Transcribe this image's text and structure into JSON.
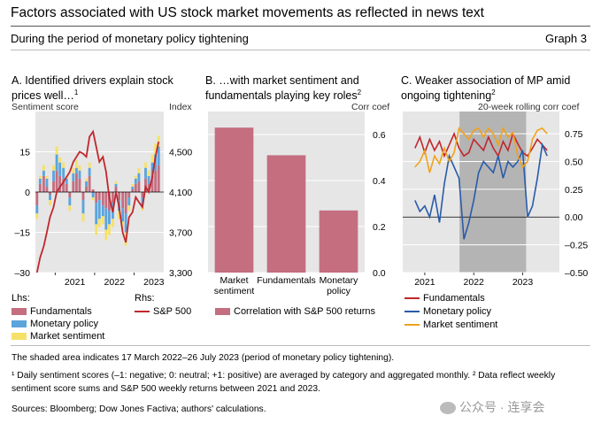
{
  "header": {
    "title": "Factors associated with US stock market movements as reflected in news text",
    "subtitle": "During the period of monetary policy tightening",
    "graph_number": "Graph 3"
  },
  "colors": {
    "fundamentals": "#c46e80",
    "monetary_policy": "#5ba4dc",
    "market_sentiment": "#f5e16a",
    "sp500": "#c0272d",
    "mp_line": "#2a5ba8",
    "sentiment_line": "#f0a21c",
    "corr_bar": "#c46e80",
    "panel_bg": "#e6e6e6",
    "shade": "#b4b4b4"
  },
  "panel_a": {
    "title": "A. Identified drivers explain stock prices well…",
    "title_sup": "1",
    "left_unit": "Sentiment score",
    "right_unit": "Index",
    "legend": {
      "lhs_label": "Lhs:",
      "rhs_label": "Rhs:",
      "fundamentals": "Fundamentals",
      "monetary_policy": "Monetary policy",
      "market_sentiment": "Market sentiment",
      "sp500": "S&P 500"
    }
  },
  "panel_b": {
    "title": "B. …with market sentiment and fundamentals playing key roles",
    "title_sup": "2",
    "right_unit": "Corr coef",
    "legend": {
      "corr": "Correlation with S&P 500 returns"
    }
  },
  "panel_c": {
    "title": "C. Weaker association of MP amid ongoing tightening",
    "title_sup": "2",
    "right_unit": "20-week rolling corr coef",
    "legend": {
      "fundamentals": "Fundamentals",
      "monetary_policy": "Monetary policy",
      "market_sentiment": "Market sentiment"
    }
  },
  "footer": {
    "shade_note": "The shaded area indicates 17 March 2022–26 July 2023 (period of monetary policy tightening).",
    "notes": "¹  Daily sentiment scores (–1: negative; 0: neutral; +1: positive) are averaged by category and aggregated monthly.   ²  Data reflect weekly sentiment score sums and S&P 500 weekly returns between 2021 and 2023.",
    "sources": "Sources: Bloomberg; Dow Jones Factiva; authors' calculations.",
    "watermark": "公众号 · 连享会"
  },
  "chart_data": [
    {
      "type": "bar",
      "panel": "A",
      "title": "A. Identified drivers explain stock prices well…",
      "ylabel_left": "Sentiment score",
      "ylabel_right": "Index",
      "ylim_left": [
        -30,
        30
      ],
      "ylim_right": [
        3300,
        4900
      ],
      "left_ticks": [
        "15",
        "0",
        "–15",
        "–30"
      ],
      "left_tick_values": [
        15,
        0,
        -15,
        -30
      ],
      "right_ticks": [
        "4,500",
        "4,100",
        "3,700",
        "3,300"
      ],
      "right_tick_values": [
        4500,
        4100,
        3700,
        3300
      ],
      "x_ticks": [
        "2021",
        "2022",
        "2023"
      ],
      "x_tick_positions": [
        2021.0,
        2022.0,
        2023.0
      ],
      "x_range": [
        2020.5,
        2023.75
      ],
      "x": [
        2020.54,
        2020.62,
        2020.71,
        2020.79,
        2020.87,
        2020.96,
        2021.04,
        2021.12,
        2021.21,
        2021.29,
        2021.37,
        2021.46,
        2021.54,
        2021.62,
        2021.71,
        2021.79,
        2021.87,
        2021.96,
        2022.04,
        2022.12,
        2022.21,
        2022.29,
        2022.37,
        2022.46,
        2022.54,
        2022.62,
        2022.71,
        2022.79,
        2022.87,
        2022.96,
        2023.04,
        2023.12,
        2023.21,
        2023.29,
        2023.37,
        2023.46,
        2023.54,
        2023.62
      ],
      "series": [
        {
          "name": "Fundamentals",
          "stack": "sentiment",
          "values": [
            -5,
            3,
            6,
            2,
            -1,
            4,
            8,
            6,
            5,
            3,
            -2,
            4,
            7,
            5,
            -3,
            2,
            6,
            1,
            -4,
            -3,
            -5,
            -6,
            -7,
            -4,
            2,
            -3,
            -6,
            -8,
            -2,
            1,
            3,
            4,
            -2,
            5,
            3,
            6,
            8,
            10
          ]
        },
        {
          "name": "Monetary policy",
          "stack": "sentiment",
          "values": [
            -3,
            2,
            2,
            3,
            -2,
            4,
            6,
            5,
            4,
            2,
            -3,
            3,
            2,
            3,
            -5,
            2,
            3,
            -2,
            -8,
            -7,
            -4,
            -8,
            -5,
            -6,
            1,
            -4,
            -5,
            -7,
            -3,
            1,
            2,
            3,
            -3,
            4,
            3,
            5,
            6,
            7
          ]
        },
        {
          "name": "Market sentiment",
          "stack": "sentiment",
          "values": [
            -2,
            1,
            2,
            1,
            -2,
            2,
            3,
            2,
            2,
            1,
            -2,
            2,
            3,
            2,
            -3,
            1,
            2,
            -1,
            -4,
            -3,
            -3,
            -4,
            -4,
            -3,
            1,
            -3,
            -3,
            -5,
            -2,
            1,
            1,
            2,
            -2,
            2,
            2,
            3,
            4,
            4
          ]
        },
        {
          "name": "S&P 500",
          "axis": "right",
          "values": [
            3300,
            3450,
            3560,
            3700,
            3850,
            3950,
            4100,
            4150,
            4200,
            4250,
            4300,
            4400,
            4450,
            4500,
            4480,
            4450,
            4650,
            4700,
            4550,
            4400,
            4450,
            4300,
            4050,
            3900,
            4100,
            3950,
            3700,
            3600,
            3850,
            3900,
            4050,
            4000,
            3950,
            4150,
            4100,
            4250,
            4450,
            4600
          ]
        }
      ]
    },
    {
      "type": "bar",
      "panel": "B",
      "title": "B. …with market sentiment and fundamentals playing key roles",
      "ylabel_right": "Corr coef",
      "categories": [
        "Market sentiment",
        "Fundamentals",
        "Monetary policy"
      ],
      "category_labels": [
        [
          "Market",
          "sentiment"
        ],
        [
          "Fundamentals"
        ],
        [
          "Monetary",
          "policy"
        ]
      ],
      "values": [
        0.63,
        0.51,
        0.27
      ],
      "series_name": "Correlation with S&P 500 returns",
      "ylim": [
        0,
        0.7
      ],
      "ticks": [
        "0.6",
        "0.4",
        "0.2",
        "0.0"
      ],
      "tick_values": [
        0.6,
        0.4,
        0.2,
        0.0
      ]
    },
    {
      "type": "line",
      "panel": "C",
      "title": "C. Weaker association of MP amid ongoing tightening",
      "ylabel_right": "20-week rolling corr coef",
      "ylim": [
        -0.5,
        0.95
      ],
      "ticks": [
        "0.75",
        "0.50",
        "0.25",
        "0.00",
        "–0.25",
        "–0.50"
      ],
      "tick_values": [
        0.75,
        0.5,
        0.25,
        0.0,
        -0.25,
        -0.5
      ],
      "x_ticks": [
        "2021",
        "2022",
        "2023"
      ],
      "x_tick_positions": [
        2021.0,
        2022.0,
        2023.0
      ],
      "x_range": [
        2020.55,
        2023.75
      ],
      "shaded_range": [
        2021.71,
        2023.07
      ],
      "x": [
        2020.8,
        2020.9,
        2021.0,
        2021.1,
        2021.2,
        2021.3,
        2021.4,
        2021.5,
        2021.6,
        2021.7,
        2021.8,
        2021.9,
        2022.0,
        2022.1,
        2022.2,
        2022.3,
        2022.4,
        2022.5,
        2022.6,
        2022.7,
        2022.8,
        2022.9,
        2023.0,
        2023.1,
        2023.2,
        2023.3,
        2023.4,
        2023.5
      ],
      "series": [
        {
          "name": "Fundamentals",
          "values": [
            0.62,
            0.72,
            0.58,
            0.7,
            0.6,
            0.68,
            0.55,
            0.65,
            0.75,
            0.62,
            0.55,
            0.58,
            0.7,
            0.65,
            0.6,
            0.72,
            0.62,
            0.55,
            0.68,
            0.6,
            0.75,
            0.66,
            0.58,
            0.55,
            0.62,
            0.7,
            0.65,
            0.6
          ]
        },
        {
          "name": "Monetary policy",
          "values": [
            0.15,
            0.05,
            0.1,
            0.0,
            0.2,
            -0.05,
            0.3,
            0.55,
            0.45,
            0.35,
            -0.2,
            -0.05,
            0.15,
            0.4,
            0.5,
            0.45,
            0.4,
            0.55,
            0.35,
            0.5,
            0.45,
            0.5,
            0.6,
            0.0,
            0.1,
            0.35,
            0.65,
            0.55
          ]
        },
        {
          "name": "Market sentiment",
          "values": [
            0.45,
            0.5,
            0.6,
            0.4,
            0.55,
            0.48,
            0.62,
            0.5,
            0.58,
            0.8,
            0.75,
            0.7,
            0.78,
            0.8,
            0.72,
            0.8,
            0.75,
            0.65,
            0.8,
            0.72,
            0.76,
            0.55,
            0.45,
            0.5,
            0.7,
            0.78,
            0.8,
            0.75
          ]
        }
      ]
    }
  ]
}
